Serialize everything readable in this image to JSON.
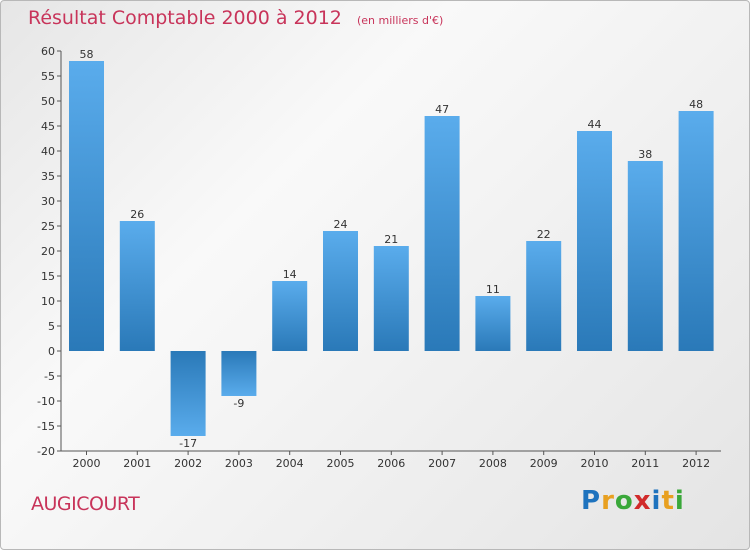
{
  "header": {
    "title": "Résultat Comptable 2000 à 2012",
    "subtitle": "(en milliers d'€)"
  },
  "footer": {
    "commune": "AUGICOURT",
    "brand": "Proxiti",
    "brand_letters": [
      "P",
      "r",
      "o",
      "x",
      "i",
      "t",
      "i"
    ],
    "brand_colors": [
      "#1e73be",
      "#e8a020",
      "#3aa83a",
      "#d12b2b",
      "#1e73be",
      "#e8a020",
      "#3aa83a"
    ]
  },
  "colors": {
    "bar_light": "#5aacec",
    "bar_dark": "#2a79b8",
    "title": "#c8345a",
    "axis": "#333333"
  },
  "chart_data": {
    "type": "bar",
    "title": "Résultat Comptable 2000 à 2012",
    "subtitle": "(en milliers d'€)",
    "xlabel": "",
    "ylabel": "",
    "categories": [
      "2000",
      "2001",
      "2002",
      "2003",
      "2004",
      "2005",
      "2006",
      "2007",
      "2008",
      "2009",
      "2010",
      "2011",
      "2012"
    ],
    "values": [
      58,
      26,
      -17,
      -9,
      14,
      24,
      21,
      47,
      11,
      22,
      44,
      38,
      48
    ],
    "ylim": [
      -20,
      60
    ],
    "yticks": [
      60,
      55,
      50,
      45,
      40,
      35,
      30,
      25,
      20,
      15,
      10,
      5,
      0,
      -5,
      -10,
      -15,
      -20
    ],
    "grid": false,
    "legend": "none"
  }
}
